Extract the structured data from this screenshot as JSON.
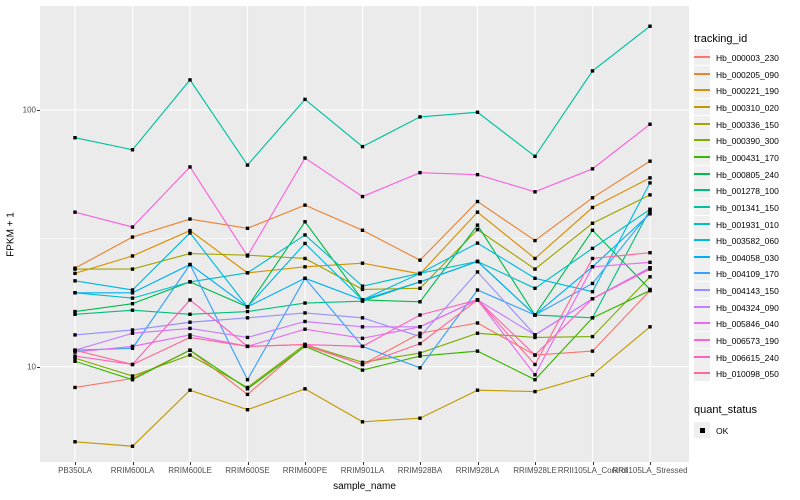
{
  "axes": {
    "y_title": "FPKM + 1",
    "x_title": "sample_name",
    "y_ticks": [
      {
        "label": "100",
        "value": 100
      },
      {
        "label": "10",
        "value": 10
      }
    ]
  },
  "legend": {
    "tracking_title": "tracking_id",
    "quant_title": "quant_status",
    "quant_items": [
      {
        "label": "OK"
      }
    ]
  },
  "panel_style": {
    "background": "#EBEBEB",
    "gridline": "#FFFFFF"
  },
  "chart_data": {
    "type": "line",
    "title": "",
    "xlabel": "sample_name",
    "ylabel": "FPKM + 1",
    "y_scale": "log10",
    "ylim": [
      4.25,
      245
    ],
    "y_major_gridlines": [
      10,
      100
    ],
    "y_minor_gridlines": [
      31.6
    ],
    "grid": "on",
    "legend_position": "right",
    "marker": "black-square",
    "categories": [
      "PB350LA",
      "RRIM600LA",
      "RRIM600LE",
      "RRIM600SE",
      "RRIM600PE",
      "RRIM901LA",
      "RRIM928BA",
      "RRIM928LA",
      "RRIM928LE",
      "RRII105LA_Control",
      "RRII105LA_Stressed"
    ],
    "series": [
      {
        "name": "Hb_000003_230",
        "color": "#F8766D",
        "values": [
          8.3,
          9.0,
          11.6,
          7.8,
          12.1,
          10.2,
          13.5,
          14.8,
          11.1,
          11.5,
          19.8
        ]
      },
      {
        "name": "Hb_000205_090",
        "color": "#EA8331",
        "values": [
          24.2,
          32.0,
          37.6,
          34.6,
          42.6,
          34.0,
          26.0,
          44.0,
          31.0,
          45.5,
          63.2
        ]
      },
      {
        "name": "Hb_000221_190",
        "color": "#D89000",
        "values": [
          23.1,
          27.0,
          33.9,
          23.2,
          24.5,
          25.3,
          23.0,
          40.0,
          26.4,
          41.7,
          54.4
        ]
      },
      {
        "name": "Hb_000310_020",
        "color": "#C09B00",
        "values": [
          5.1,
          4.9,
          8.1,
          6.8,
          8.2,
          6.1,
          6.3,
          8.1,
          8.0,
          9.3,
          14.3
        ]
      },
      {
        "name": "Hb_000336_150",
        "color": "#A3A500",
        "values": [
          24.0,
          24.0,
          27.6,
          27.2,
          26.4,
          20.0,
          20.2,
          34.2,
          24.0,
          36.2,
          46.7
        ]
      },
      {
        "name": "Hb_000390_300",
        "color": "#7CAE00",
        "values": [
          10.8,
          9.2,
          11.1,
          8.3,
          12.2,
          10.4,
          11.3,
          13.5,
          13.0,
          13.1,
          22.4
        ]
      },
      {
        "name": "Hb_000431_170",
        "color": "#39B600",
        "values": [
          10.5,
          8.9,
          11.6,
          8.2,
          12.0,
          9.7,
          11.0,
          11.5,
          8.9,
          15.5,
          19.8
        ]
      },
      {
        "name": "Hb_000805_240",
        "color": "#00BB4E",
        "values": [
          16.4,
          17.6,
          21.4,
          17.1,
          36.7,
          18.2,
          17.9,
          35.6,
          15.9,
          34.0,
          20.0
        ]
      },
      {
        "name": "Hb_001278_100",
        "color": "#00BF7D",
        "values": [
          16.0,
          16.6,
          16.0,
          16.4,
          17.7,
          18.0,
          21.4,
          25.7,
          15.9,
          15.5,
          41.0
        ]
      },
      {
        "name": "Hb_001341_150",
        "color": "#00C1A3",
        "values": [
          78,
          70,
          131,
          61,
          110,
          72,
          94,
          98,
          66,
          142,
          212
        ]
      },
      {
        "name": "Hb_001931_010",
        "color": "#00BFC4",
        "values": [
          19.4,
          18.5,
          21.4,
          23.2,
          32.6,
          20.6,
          23.1,
          25.7,
          20.2,
          28.9,
          41.0
        ]
      },
      {
        "name": "Hb_003582_060",
        "color": "#00BAE0",
        "values": [
          21.6,
          19.9,
          33.2,
          17.1,
          30.2,
          18.2,
          23.1,
          30.3,
          22.1,
          19.6,
          52.0
        ]
      },
      {
        "name": "Hb_004058_030",
        "color": "#00B0F6",
        "values": [
          19.4,
          19.4,
          25.0,
          17.1,
          22.1,
          18.2,
          21.4,
          25.7,
          15.9,
          24.5,
          39.4
        ]
      },
      {
        "name": "Hb_004109_170",
        "color": "#35A2FF",
        "values": [
          11.6,
          11.8,
          25.0,
          8.9,
          22.1,
          12.0,
          9.9,
          19.9,
          15.9,
          21.1,
          40.0
        ]
      },
      {
        "name": "Hb_004143_150",
        "color": "#9590FF",
        "values": [
          13.3,
          13.9,
          14.9,
          15.5,
          16.2,
          15.5,
          13.1,
          23.4,
          13.3,
          18.4,
          24.3
        ]
      },
      {
        "name": "Hb_004324_090",
        "color": "#C77CFF",
        "values": [
          11.6,
          13.5,
          14.1,
          13.0,
          15.0,
          14.3,
          14.3,
          18.2,
          13.3,
          18.4,
          24.3
        ]
      },
      {
        "name": "Hb_005846_040",
        "color": "#E76BF3",
        "values": [
          11.4,
          12.0,
          13.3,
          12.0,
          14.0,
          12.9,
          14.3,
          18.2,
          9.3,
          24.5,
          25.5
        ]
      },
      {
        "name": "Hb_006573_190",
        "color": "#FA62DB",
        "values": [
          40,
          35,
          60,
          27,
          65,
          46,
          57,
          56,
          48,
          59,
          88
        ]
      },
      {
        "name": "Hb_006615_240",
        "color": "#FF62BC",
        "values": [
          11.0,
          10.2,
          18.2,
          12.0,
          12.2,
          12.0,
          15.9,
          18.2,
          11.1,
          18.4,
          24.0
        ]
      },
      {
        "name": "Hb_010098_050",
        "color": "#FF6A98",
        "values": [
          11.6,
          10.2,
          13.0,
          12.0,
          12.2,
          10.2,
          12.3,
          18.2,
          10.2,
          26.4,
          27.8
        ]
      }
    ]
  }
}
